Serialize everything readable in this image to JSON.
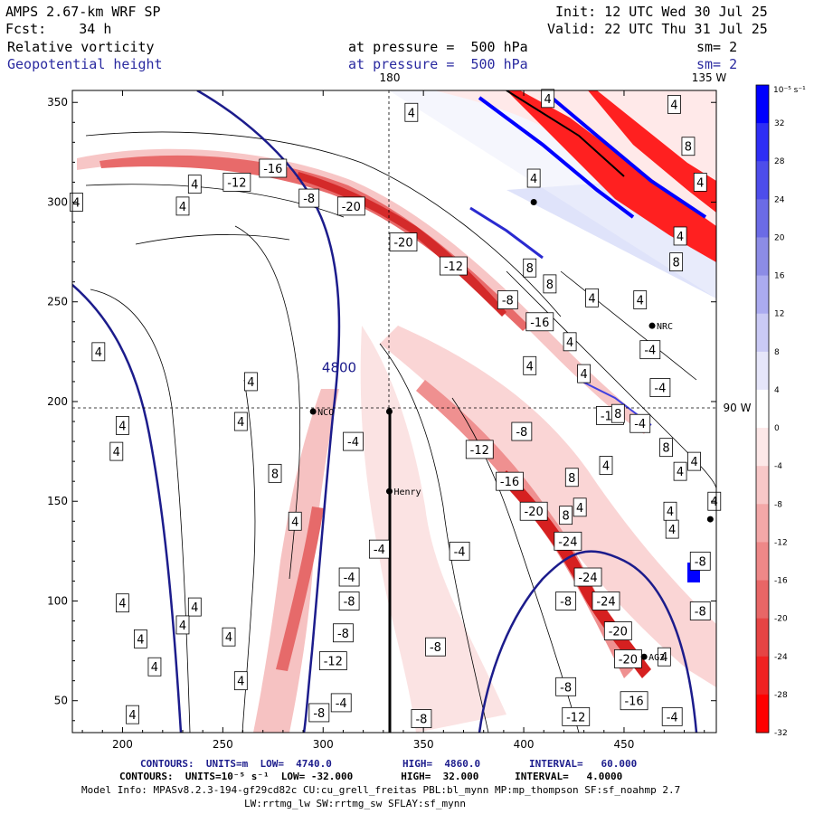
{
  "header": {
    "model": "AMPS 2.67-km WRF SP",
    "init": "Init: 12 UTC Wed 30 Jul 25",
    "fcst": "Fcst:    34 h",
    "valid": "Valid: 22 UTC Thu 31 Jul 25",
    "field1": "Relative vorticity",
    "pressure1": "at pressure =  500 hPa",
    "sm1": "sm= 2",
    "field2": "Geopotential height",
    "pressure2": "at pressure =  500 hPa",
    "sm2": "sm= 2"
  },
  "map": {
    "lon_top_left": "180",
    "lon_top_right": "135 W",
    "lat_right": "90 W",
    "stations": [
      {
        "name": "NCO",
        "x": 295,
        "y": 195
      },
      {
        "name": "Henry",
        "x": 333,
        "y": 155
      },
      {
        "name": "NRC",
        "x": 464,
        "y": 238
      },
      {
        "name": "AG2",
        "x": 460,
        "y": 72
      },
      {
        "name": "",
        "x": 333,
        "y": 195
      },
      {
        "name": "",
        "x": 405,
        "y": 300
      },
      {
        "name": "",
        "x": 493,
        "y": 141
      }
    ],
    "height_label": "4800",
    "height_label_pos": {
      "x": 308,
      "y": 217
    },
    "vorticity_labels": [
      {
        "v": "-16",
        "x": 275,
        "y": 317
      },
      {
        "v": "-12",
        "x": 257,
        "y": 310
      },
      {
        "v": "-8",
        "x": 293,
        "y": 302
      },
      {
        "v": "-20",
        "x": 314,
        "y": 298
      },
      {
        "v": "-20",
        "x": 340,
        "y": 280
      },
      {
        "v": "-12",
        "x": 365,
        "y": 268
      },
      {
        "v": "-8",
        "x": 392,
        "y": 251
      },
      {
        "v": "-16",
        "x": 408,
        "y": 240
      },
      {
        "v": "-4",
        "x": 463,
        "y": 226
      },
      {
        "v": "-4",
        "x": 468,
        "y": 207
      },
      {
        "v": "-12",
        "x": 443,
        "y": 193
      },
      {
        "v": "-4",
        "x": 458,
        "y": 189
      },
      {
        "v": "-8",
        "x": 399,
        "y": 185
      },
      {
        "v": "-12",
        "x": 378,
        "y": 176
      },
      {
        "v": "-16",
        "x": 393,
        "y": 160
      },
      {
        "v": "-20",
        "x": 405,
        "y": 145
      },
      {
        "v": "-24",
        "x": 422,
        "y": 130
      },
      {
        "v": "-4",
        "x": 368,
        "y": 125
      },
      {
        "v": "-4",
        "x": 315,
        "y": 180
      },
      {
        "v": "-24",
        "x": 432,
        "y": 112
      },
      {
        "v": "-8",
        "x": 421,
        "y": 100
      },
      {
        "v": "-24",
        "x": 441,
        "y": 100
      },
      {
        "v": "-20",
        "x": 447,
        "y": 85
      },
      {
        "v": "-20",
        "x": 452,
        "y": 71
      },
      {
        "v": "-8",
        "x": 421,
        "y": 57
      },
      {
        "v": "-12",
        "x": 426,
        "y": 42
      },
      {
        "v": "-16",
        "x": 455,
        "y": 50
      },
      {
        "v": "-4",
        "x": 474,
        "y": 42
      },
      {
        "v": "-8",
        "x": 488,
        "y": 120
      },
      {
        "v": "-8",
        "x": 488,
        "y": 95
      },
      {
        "v": "-4",
        "x": 313,
        "y": 112
      },
      {
        "v": "-8",
        "x": 313,
        "y": 100
      },
      {
        "v": "-4",
        "x": 328,
        "y": 126
      },
      {
        "v": "-8",
        "x": 310,
        "y": 84
      },
      {
        "v": "-12",
        "x": 305,
        "y": 70
      },
      {
        "v": "-8",
        "x": 356,
        "y": 77
      },
      {
        "v": "-4",
        "x": 309,
        "y": 49
      },
      {
        "v": "-8",
        "x": 298,
        "y": 44
      },
      {
        "v": "-8",
        "x": 349,
        "y": 41
      }
    ],
    "positive_labels": [
      {
        "v": "4",
        "x": 412,
        "y": 352
      },
      {
        "v": "4",
        "x": 344,
        "y": 345
      },
      {
        "v": "4",
        "x": 236,
        "y": 309
      },
      {
        "v": "4",
        "x": 177,
        "y": 300
      },
      {
        "v": "4",
        "x": 230,
        "y": 298
      },
      {
        "v": "4",
        "x": 405,
        "y": 312
      },
      {
        "v": "4",
        "x": 475,
        "y": 349
      },
      {
        "v": "8",
        "x": 482,
        "y": 328
      },
      {
        "v": "4",
        "x": 488,
        "y": 310
      },
      {
        "v": "4",
        "x": 478,
        "y": 283
      },
      {
        "v": "8",
        "x": 476,
        "y": 270
      },
      {
        "v": "8",
        "x": 403,
        "y": 267
      },
      {
        "v": "8",
        "x": 413,
        "y": 259
      },
      {
        "v": "4",
        "x": 434,
        "y": 252
      },
      {
        "v": "4",
        "x": 458,
        "y": 251
      },
      {
        "v": "4",
        "x": 423,
        "y": 230
      },
      {
        "v": "4",
        "x": 430,
        "y": 214
      },
      {
        "v": "4",
        "x": 403,
        "y": 218
      },
      {
        "v": "8",
        "x": 447,
        "y": 194
      },
      {
        "v": "4",
        "x": 441,
        "y": 168
      },
      {
        "v": "4",
        "x": 478,
        "y": 165
      },
      {
        "v": "8",
        "x": 471,
        "y": 177
      },
      {
        "v": "4",
        "x": 485,
        "y": 170
      },
      {
        "v": "8",
        "x": 424,
        "y": 162
      },
      {
        "v": "4",
        "x": 428,
        "y": 147
      },
      {
        "v": "8",
        "x": 421,
        "y": 143
      },
      {
        "v": "4",
        "x": 474,
        "y": 136
      },
      {
        "v": "4",
        "x": 495,
        "y": 150
      },
      {
        "v": "4",
        "x": 473,
        "y": 145
      },
      {
        "v": "4",
        "x": 470,
        "y": 72
      },
      {
        "v": "4",
        "x": 188,
        "y": 225
      },
      {
        "v": "4",
        "x": 264,
        "y": 210
      },
      {
        "v": "4",
        "x": 200,
        "y": 188
      },
      {
        "v": "4",
        "x": 259,
        "y": 190
      },
      {
        "v": "4",
        "x": 197,
        "y": 175
      },
      {
        "v": "8",
        "x": 276,
        "y": 164
      },
      {
        "v": "4",
        "x": 286,
        "y": 140
      },
      {
        "v": "4",
        "x": 200,
        "y": 99
      },
      {
        "v": "4",
        "x": 236,
        "y": 97
      },
      {
        "v": "4",
        "x": 209,
        "y": 81
      },
      {
        "v": "4",
        "x": 230,
        "y": 88
      },
      {
        "v": "4",
        "x": 253,
        "y": 82
      },
      {
        "v": "4",
        "x": 216,
        "y": 67
      },
      {
        "v": "4",
        "x": 205,
        "y": 43
      },
      {
        "v": "4",
        "x": 259,
        "y": 60
      }
    ]
  },
  "axes": {
    "xticks": [
      "200",
      "250",
      "300",
      "350",
      "400",
      "450"
    ],
    "yticks": [
      "50",
      "100",
      "150",
      "200",
      "250",
      "300",
      "350"
    ],
    "xlim": [
      175,
      496
    ],
    "ylim": [
      34,
      356
    ]
  },
  "colorbar": {
    "unit": "10⁻⁵ s⁻¹",
    "labels": [
      "32",
      "28",
      "24",
      "20",
      "16",
      "12",
      "8",
      "4",
      "0",
      "-4",
      "-8",
      "-12",
      "-16",
      "-20",
      "-24",
      "-28",
      "-32"
    ],
    "colors": [
      "#0000ff",
      "#2e2ef5",
      "#4d4deb",
      "#6b6be6",
      "#8c8ce6",
      "#ababf0",
      "#cacaf5",
      "#e6e6fa",
      "#ffffff",
      "#fde8e8",
      "#f8c8c8",
      "#f3a8a8",
      "#ee8888",
      "#e86666",
      "#e64444",
      "#f02222",
      "#ff0000"
    ]
  },
  "footer": {
    "line1_a": "CONTOURS:  UNITS=m  LOW=  4740.0",
    "line1_b": "HIGH=  4860.0",
    "line1_c": "INTERVAL=   60.000",
    "line2": "CONTOURS:  UNITS=10⁻⁵ s⁻¹  LOW= -32.000        HIGH=  32.000      INTERVAL=   4.0000",
    "line3": "Model Info: MPASv8.2.3-194-gf29cd82c CU:cu_grell_freitas PBL:bl_mynn MP:mp_thompson SF:sf_noahmp 2.7",
    "line4": "LW:rrtmg_lw SW:rrtmg_sw SFLAY:sf_mynn"
  }
}
